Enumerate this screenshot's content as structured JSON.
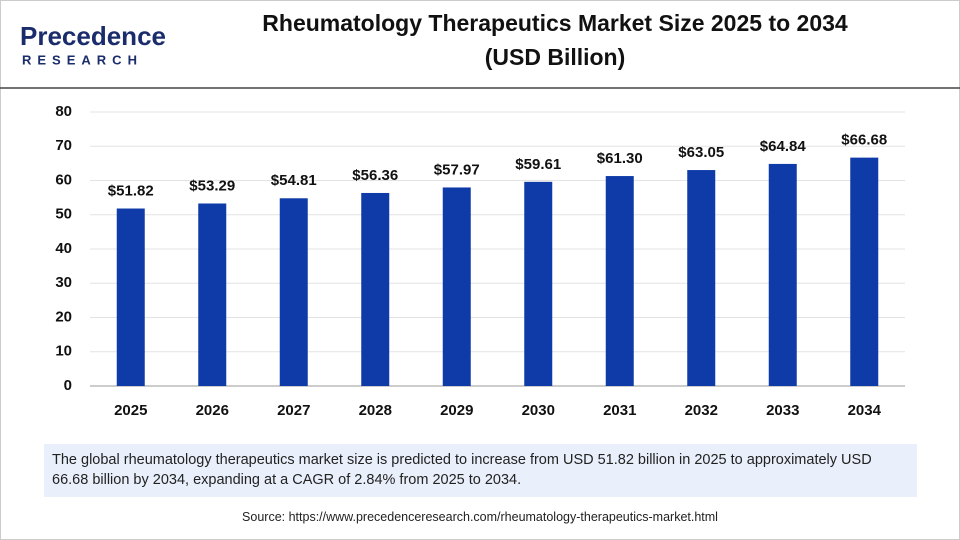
{
  "logo": {
    "name": "Precedence",
    "tagline": "RESEARCH"
  },
  "chart_data": {
    "type": "bar",
    "title": "Rheumatology Therapeutics Market Size 2025 to 2034",
    "subtitle": "(USD Billion)",
    "categories": [
      "2025",
      "2026",
      "2027",
      "2028",
      "2029",
      "2030",
      "2031",
      "2032",
      "2033",
      "2034"
    ],
    "values": [
      51.82,
      53.29,
      54.81,
      56.36,
      57.97,
      59.61,
      61.3,
      63.05,
      64.84,
      66.68
    ],
    "value_labels": [
      "$51.82",
      "$53.29",
      "$54.81",
      "$56.36",
      "$57.97",
      "$59.61",
      "$61.30",
      "$63.05",
      "$64.84",
      "$66.68"
    ],
    "color": "#0f3ba8",
    "ylim": [
      0,
      80
    ],
    "yticks": [
      0,
      10,
      20,
      30,
      40,
      50,
      60,
      70,
      80
    ],
    "grid": true
  },
  "description": "The global rheumatology therapeutics market size is predicted to increase from USD 51.82 billion in 2025 to approximately USD 66.68 billion by 2034, expanding at a CAGR of 2.84% from 2025 to 2034.",
  "source": "Source: https://www.precedenceresearch.com/rheumatology-therapeutics-market.html"
}
